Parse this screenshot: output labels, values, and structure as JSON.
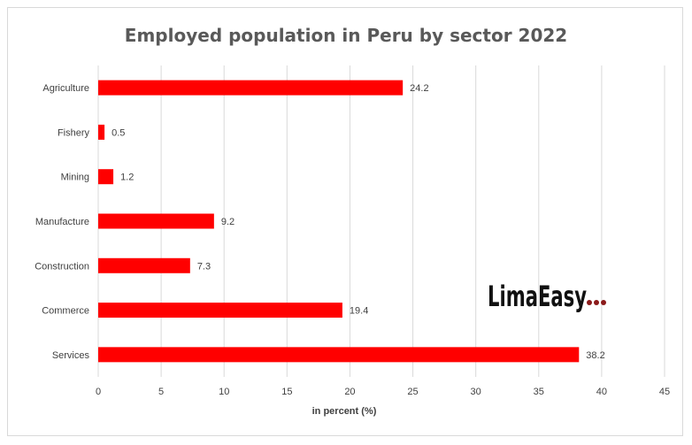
{
  "chart_data": {
    "type": "bar",
    "orientation": "horizontal",
    "title": "Employed population in Peru by sector 2022",
    "xlabel": "in percent (%)",
    "ylabel": "",
    "categories": [
      "Agriculture",
      "Fishery",
      "Mining",
      "Manufacture",
      "Construction",
      "Commerce",
      "Services"
    ],
    "values": [
      24.2,
      0.5,
      1.2,
      9.2,
      7.3,
      19.4,
      38.2
    ],
    "xlim": [
      0,
      45
    ],
    "ticks": [
      0,
      5,
      10,
      15,
      20,
      25,
      30,
      35,
      40,
      45
    ],
    "grid": "vertical",
    "legend": "none",
    "bar_color": "#ff0000"
  },
  "logo": {
    "text": "LimaEasy",
    "dot_color": "#8b1a1a"
  }
}
